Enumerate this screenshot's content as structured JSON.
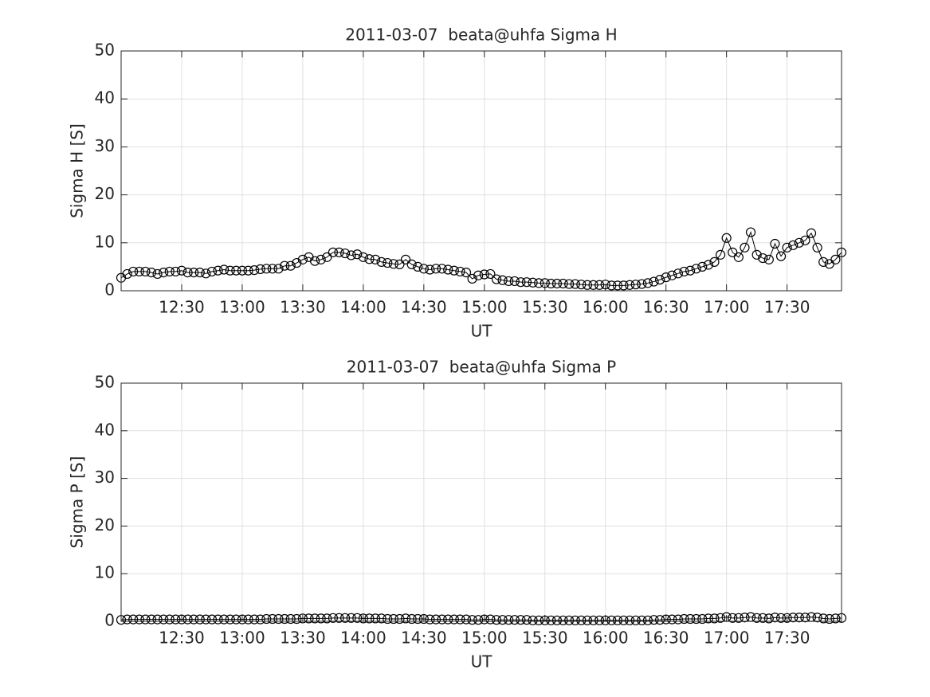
{
  "chart_data": [
    {
      "type": "line",
      "title": "2011-03-07  beata@uhfa Sigma H",
      "xlabel": "UT",
      "ylabel": "Sigma H [S]",
      "color": "#000000",
      "marker": "circle",
      "grid": true,
      "x": [
        "12:00",
        "12:03",
        "12:06",
        "12:09",
        "12:12",
        "12:15",
        "12:18",
        "12:21",
        "12:24",
        "12:27",
        "12:30",
        "12:33",
        "12:36",
        "12:39",
        "12:42",
        "12:45",
        "12:48",
        "12:51",
        "12:54",
        "12:57",
        "13:00",
        "13:03",
        "13:06",
        "13:09",
        "13:12",
        "13:15",
        "13:18",
        "13:21",
        "13:24",
        "13:27",
        "13:30",
        "13:33",
        "13:36",
        "13:39",
        "13:42",
        "13:45",
        "13:48",
        "13:51",
        "13:54",
        "13:57",
        "14:00",
        "14:03",
        "14:06",
        "14:09",
        "14:12",
        "14:15",
        "14:18",
        "14:21",
        "14:24",
        "14:27",
        "14:30",
        "14:33",
        "14:36",
        "14:39",
        "14:42",
        "14:45",
        "14:48",
        "14:51",
        "14:54",
        "14:57",
        "15:00",
        "15:03",
        "15:06",
        "15:09",
        "15:12",
        "15:15",
        "15:18",
        "15:21",
        "15:24",
        "15:27",
        "15:30",
        "15:33",
        "15:36",
        "15:39",
        "15:42",
        "15:45",
        "15:48",
        "15:51",
        "15:54",
        "15:57",
        "16:00",
        "16:03",
        "16:06",
        "16:09",
        "16:12",
        "16:15",
        "16:18",
        "16:21",
        "16:24",
        "16:27",
        "16:30",
        "16:33",
        "16:36",
        "16:39",
        "16:42",
        "16:45",
        "16:48",
        "16:51",
        "16:54",
        "16:57",
        "17:00",
        "17:03",
        "17:06",
        "17:09",
        "17:12",
        "17:15",
        "17:18",
        "17:21",
        "17:24",
        "17:27",
        "17:30",
        "17:33",
        "17:36",
        "17:39",
        "17:42",
        "17:45",
        "17:48",
        "17:51",
        "17:54",
        "17:57"
      ],
      "values": [
        2.7,
        3.5,
        4,
        4,
        4,
        3.8,
        3.5,
        3.8,
        4,
        4,
        4.2,
        3.8,
        3.8,
        3.8,
        3.6,
        4,
        4.2,
        4.4,
        4.2,
        4.2,
        4.2,
        4.2,
        4.3,
        4.5,
        4.6,
        4.6,
        4.6,
        5.2,
        5.2,
        5.8,
        6.5,
        7,
        6.2,
        6.5,
        7,
        8,
        8,
        7.8,
        7.4,
        7.6,
        7,
        6.6,
        6.5,
        6,
        5.8,
        5.6,
        5.5,
        6.5,
        5.5,
        5,
        4.6,
        4.4,
        4.6,
        4.6,
        4.4,
        4.2,
        4,
        3.8,
        2.5,
        3.2,
        3.4,
        3.5,
        2.4,
        2.2,
        2,
        2,
        1.8,
        1.8,
        1.7,
        1.6,
        1.6,
        1.5,
        1.5,
        1.5,
        1.4,
        1.4,
        1.3,
        1.2,
        1.2,
        1.2,
        1.3,
        1.1,
        1.1,
        1.1,
        1.2,
        1.3,
        1.4,
        1.6,
        1.9,
        2.3,
        2.8,
        3.2,
        3.6,
        4,
        4.2,
        4.6,
        5,
        5.4,
        6,
        7.5,
        11,
        8,
        7,
        9,
        12.2,
        7.5,
        6.8,
        6.5,
        9.8,
        7.2,
        9,
        9.5,
        10,
        10.5,
        12,
        9,
        6,
        5.6,
        6.5,
        8
      ],
      "xlim": [
        "12:00",
        "17:57"
      ],
      "xticks": [
        "12:30",
        "13:00",
        "13:30",
        "14:00",
        "14:30",
        "15:00",
        "15:30",
        "16:00",
        "16:30",
        "17:00",
        "17:30"
      ],
      "ylim": [
        0,
        50
      ],
      "yticks": [
        0,
        10,
        20,
        30,
        40,
        50
      ]
    },
    {
      "type": "line",
      "title": "2011-03-07  beata@uhfa Sigma P",
      "xlabel": "UT",
      "ylabel": "Sigma P [S]",
      "color": "#000000",
      "marker": "circle",
      "grid": true,
      "x": [
        "12:00",
        "12:03",
        "12:06",
        "12:09",
        "12:12",
        "12:15",
        "12:18",
        "12:21",
        "12:24",
        "12:27",
        "12:30",
        "12:33",
        "12:36",
        "12:39",
        "12:42",
        "12:45",
        "12:48",
        "12:51",
        "12:54",
        "12:57",
        "13:00",
        "13:03",
        "13:06",
        "13:09",
        "13:12",
        "13:15",
        "13:18",
        "13:21",
        "13:24",
        "13:27",
        "13:30",
        "13:33",
        "13:36",
        "13:39",
        "13:42",
        "13:45",
        "13:48",
        "13:51",
        "13:54",
        "13:57",
        "14:00",
        "14:03",
        "14:06",
        "14:09",
        "14:12",
        "14:15",
        "14:18",
        "14:21",
        "14:24",
        "14:27",
        "14:30",
        "14:33",
        "14:36",
        "14:39",
        "14:42",
        "14:45",
        "14:48",
        "14:51",
        "14:54",
        "14:57",
        "15:00",
        "15:03",
        "15:06",
        "15:09",
        "15:12",
        "15:15",
        "15:18",
        "15:21",
        "15:24",
        "15:27",
        "15:30",
        "15:33",
        "15:36",
        "15:39",
        "15:42",
        "15:45",
        "15:48",
        "15:51",
        "15:54",
        "15:57",
        "16:00",
        "16:03",
        "16:06",
        "16:09",
        "16:12",
        "16:15",
        "16:18",
        "16:21",
        "16:24",
        "16:27",
        "16:30",
        "16:33",
        "16:36",
        "16:39",
        "16:42",
        "16:45",
        "16:48",
        "16:51",
        "16:54",
        "16:57",
        "17:00",
        "17:03",
        "17:06",
        "17:09",
        "17:12",
        "17:15",
        "17:18",
        "17:21",
        "17:24",
        "17:27",
        "17:30",
        "17:33",
        "17:36",
        "17:39",
        "17:42",
        "17:45",
        "17:48",
        "17:51",
        "17:54",
        "17:57"
      ],
      "values": [
        0.3,
        0.4,
        0.4,
        0.4,
        0.4,
        0.4,
        0.4,
        0.4,
        0.4,
        0.4,
        0.4,
        0.4,
        0.4,
        0.4,
        0.4,
        0.4,
        0.4,
        0.4,
        0.4,
        0.4,
        0.4,
        0.4,
        0.4,
        0.4,
        0.5,
        0.5,
        0.5,
        0.5,
        0.5,
        0.5,
        0.6,
        0.6,
        0.6,
        0.6,
        0.6,
        0.7,
        0.7,
        0.7,
        0.7,
        0.7,
        0.6,
        0.6,
        0.6,
        0.6,
        0.5,
        0.5,
        0.5,
        0.6,
        0.5,
        0.5,
        0.5,
        0.4,
        0.4,
        0.4,
        0.4,
        0.4,
        0.4,
        0.4,
        0.3,
        0.3,
        0.4,
        0.4,
        0.3,
        0.3,
        0.3,
        0.3,
        0.3,
        0.3,
        0.2,
        0.2,
        0.2,
        0.2,
        0.2,
        0.2,
        0.2,
        0.2,
        0.2,
        0.2,
        0.2,
        0.2,
        0.2,
        0.2,
        0.2,
        0.2,
        0.2,
        0.2,
        0.2,
        0.2,
        0.3,
        0.3,
        0.4,
        0.4,
        0.4,
        0.5,
        0.5,
        0.5,
        0.5,
        0.6,
        0.6,
        0.7,
        0.9,
        0.7,
        0.7,
        0.8,
        0.9,
        0.7,
        0.7,
        0.6,
        0.8,
        0.7,
        0.7,
        0.8,
        0.8,
        0.8,
        0.9,
        0.8,
        0.6,
        0.5,
        0.6,
        0.7
      ],
      "xlim": [
        "12:00",
        "17:57"
      ],
      "xticks": [
        "12:30",
        "13:00",
        "13:30",
        "14:00",
        "14:30",
        "15:00",
        "15:30",
        "16:00",
        "16:30",
        "17:00",
        "17:30"
      ],
      "ylim": [
        0,
        50
      ],
      "yticks": [
        0,
        10,
        20,
        30,
        40,
        50
      ]
    }
  ]
}
